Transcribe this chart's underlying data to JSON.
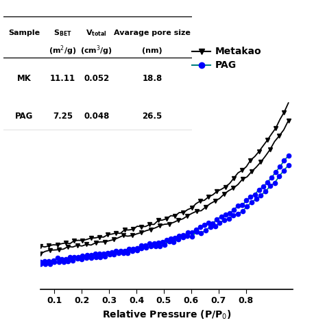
{
  "background": "#ffffff",
  "xlim": [
    0.05,
    0.97
  ],
  "xticks": [
    0.1,
    0.2,
    0.3,
    0.4,
    0.5,
    0.6,
    0.7,
    0.8
  ],
  "xlabel": "Relative Pressure (P/P$_0$)",
  "table_headers_row1": [
    "Sample",
    "S$_{BET}$",
    "V$_{total}$",
    "Avarage pore size"
  ],
  "table_headers_row2": [
    "",
    "(m$^2$/g)",
    "(cm$^3$/g)",
    "(nm)"
  ],
  "table_rows": [
    [
      "MK",
      "11.11",
      "0.052",
      "18.8"
    ],
    [
      "PAG",
      "7.25",
      "0.048",
      "26.5"
    ]
  ],
  "mk_color": "black",
  "pag_line_color": "#008080",
  "pag_marker_color": "blue",
  "legend_labels": [
    "Metakao",
    "PAG"
  ]
}
